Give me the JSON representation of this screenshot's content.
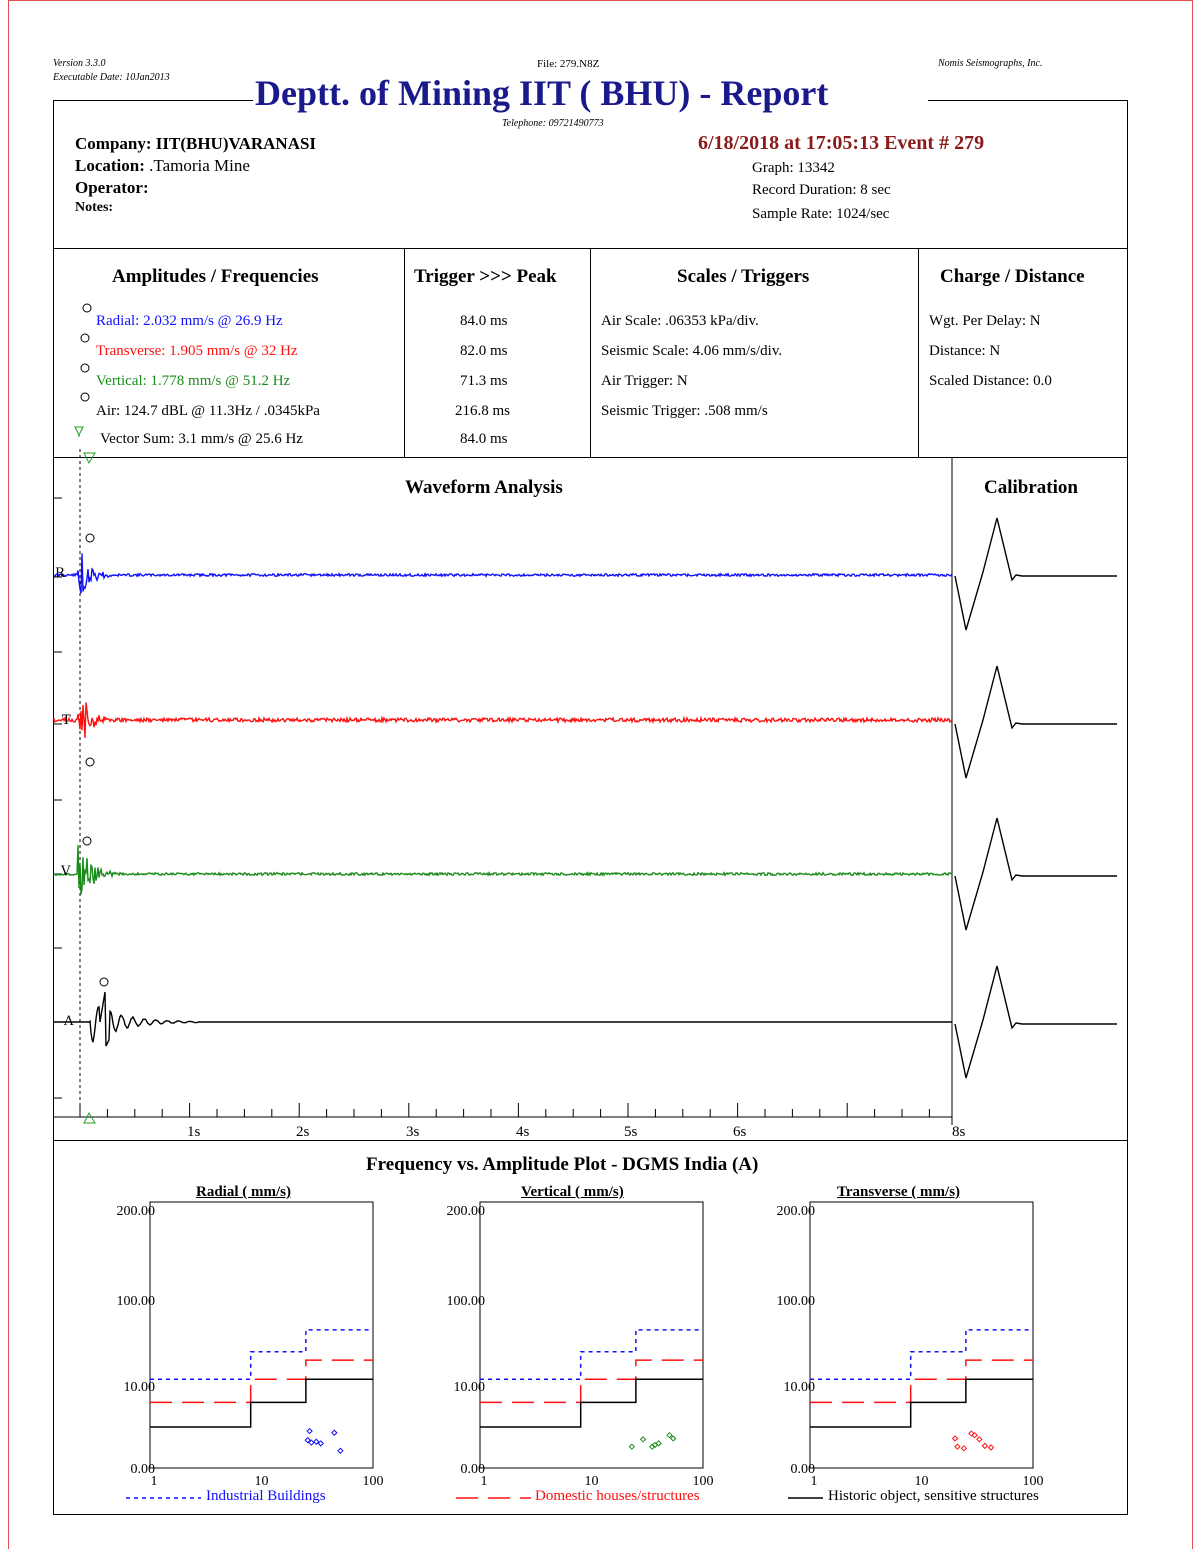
{
  "header": {
    "version": "Version 3.3.0",
    "exec_date": "Executable Date: 10Jan2013",
    "file": "File: 279.N8Z",
    "vendor": "Nomis Seismographs, Inc.",
    "title": "Deptt. of Mining IIT ( BHU) - Report",
    "telephone": "Telephone: 09721490773"
  },
  "info": {
    "company_label": "Company:",
    "company_value": "IIT(BHU)VARANASI",
    "location_label": "Location:",
    "location_value": ".Tamoria Mine",
    "operator_label": "Operator:",
    "notes_label": "Notes:",
    "event": "6/18/2018 at 17:05:13 Event # 279",
    "graph": "Graph: 13342",
    "record_duration": "Record Duration: 8 sec",
    "sample_rate": "Sample Rate: 1024/sec"
  },
  "amplitudes": {
    "title": "Amplitudes / Frequencies",
    "radial": "Radial: 2.032 mm/s @ 26.9 Hz",
    "transverse": "Transverse: 1.905 mm/s @ 32 Hz",
    "vertical": "Vertical: 1.778 mm/s @ 51.2 Hz",
    "air": "Air: 124.7 dBL @ 11.3Hz / .0345kPa",
    "vector": "Vector Sum: 3.1 mm/s @ 25.6 Hz"
  },
  "trigger": {
    "title": "Trigger >>> Peak",
    "values": [
      "84.0 ms",
      "82.0 ms",
      "71.3 ms",
      "216.8 ms",
      "84.0 ms"
    ]
  },
  "scales": {
    "title": "Scales / Triggers",
    "air_scale": "Air Scale: .06353 kPa/div.",
    "seismic_scale": "Seismic Scale: 4.06 mm/s/div.",
    "air_trigger": "Air Trigger: N",
    "seismic_trigger": "Seismic Trigger: .508 mm/s"
  },
  "charge": {
    "title": "Charge / Distance",
    "wgt": "Wgt. Per Delay: N",
    "distance": "Distance: N",
    "scaled": "Scaled Distance: 0.0"
  },
  "waveform": {
    "title": "Waveform Analysis",
    "calibration_title": "Calibration",
    "channels": [
      "R",
      "T",
      "V",
      "A"
    ],
    "time_labels": [
      "1s",
      "2s",
      "3s",
      "4s",
      "5s",
      "6s",
      "8s"
    ]
  },
  "colors": {
    "radial": "#1010ff",
    "transverse": "#ff1010",
    "vertical": "#1a8c1a",
    "air": "#000000",
    "marker_green": "#20a020"
  },
  "chart_data": [
    {
      "type": "scatter",
      "title": "Radial ( mm/s)",
      "scale": "log",
      "ylim": [
        0,
        200
      ],
      "xlim": [
        1,
        100
      ],
      "y_ticks": [
        "200.00",
        "100.00",
        "10.00",
        "0.00"
      ],
      "x_ticks": [
        "1",
        "10",
        "100"
      ],
      "color": "#1010ff",
      "points": [
        [
          26,
          3.4
        ],
        [
          28,
          3.1
        ],
        [
          31,
          3.2
        ],
        [
          34,
          3.0
        ],
        [
          27,
          4.5
        ],
        [
          45,
          4.3
        ],
        [
          51,
          2.1
        ]
      ]
    },
    {
      "type": "scatter",
      "title": "Vertical ( mm/s)",
      "scale": "log",
      "ylim": [
        0,
        200
      ],
      "xlim": [
        1,
        100
      ],
      "y_ticks": [
        "200.00",
        "100.00",
        "10.00",
        "0.00"
      ],
      "x_ticks": [
        "1",
        "10",
        "100"
      ],
      "color": "#1a8c1a",
      "points": [
        [
          23,
          2.6
        ],
        [
          29,
          3.5
        ],
        [
          35,
          2.6
        ],
        [
          37,
          2.8
        ],
        [
          40,
          3.0
        ],
        [
          50,
          4.0
        ],
        [
          54,
          3.6
        ]
      ]
    },
    {
      "type": "scatter",
      "title": "Transverse ( mm/s)",
      "scale": "log",
      "ylim": [
        0,
        200
      ],
      "xlim": [
        1,
        100
      ],
      "y_ticks": [
        "200.00",
        "100.00",
        "10.00",
        "0.00"
      ],
      "x_ticks": [
        "1",
        "10",
        "100"
      ],
      "color": "#ff1010",
      "points": [
        [
          20,
          3.6
        ],
        [
          21,
          2.6
        ],
        [
          24,
          2.4
        ],
        [
          28,
          4.2
        ],
        [
          30,
          4.0
        ],
        [
          33,
          3.5
        ],
        [
          37,
          2.7
        ],
        [
          42,
          2.5
        ]
      ]
    }
  ],
  "frequency_plot": {
    "title": "Frequency vs. Amplitude Plot - DGMS India (A)",
    "legend": [
      {
        "label": "Industrial Buildings",
        "color": "#1010ff"
      },
      {
        "label": "Domestic houses/structures",
        "color": "#ff1010"
      },
      {
        "label": "Historic object, sensitive structures",
        "color": "#000000"
      }
    ]
  }
}
